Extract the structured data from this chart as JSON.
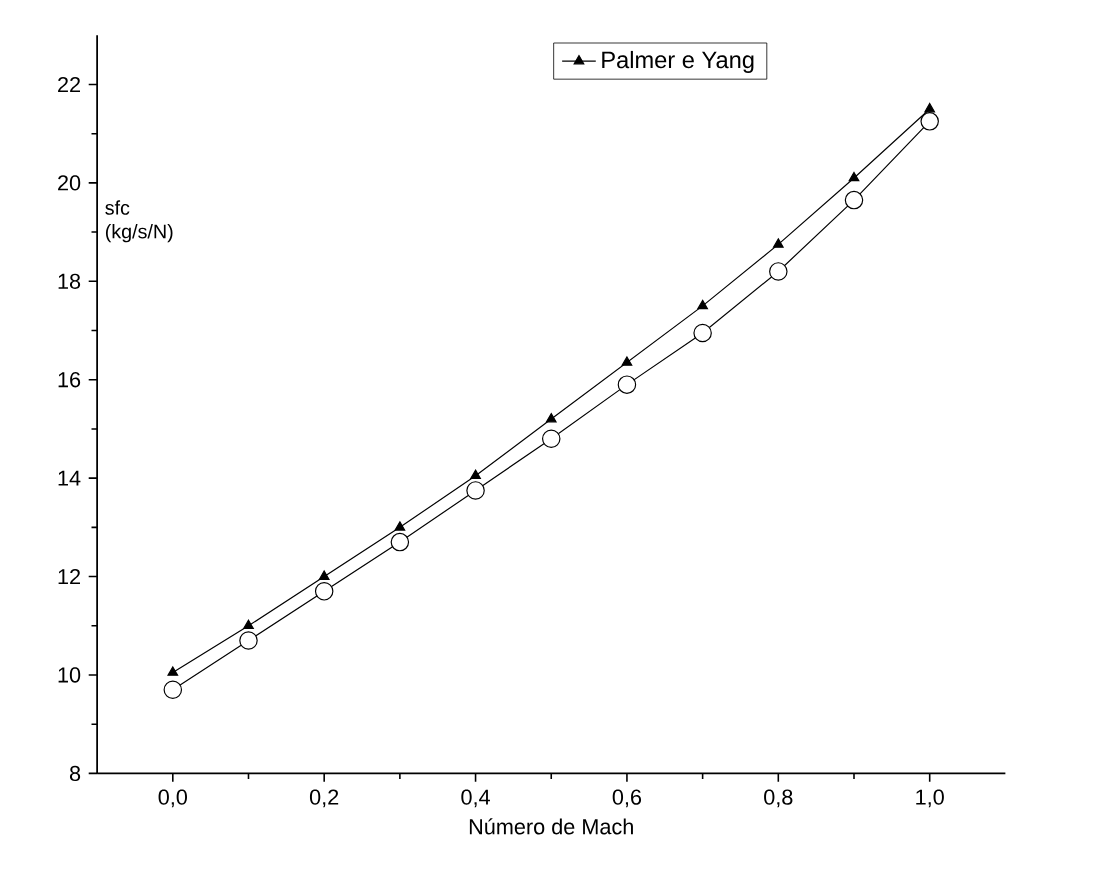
{
  "chart_data": {
    "type": "line",
    "xlabel": "Número de Mach",
    "ylabel": "sfc (kg/s/N)",
    "x": [
      0.0,
      0.1,
      0.2,
      0.3,
      0.4,
      0.5,
      0.6,
      0.7,
      0.8,
      0.9,
      1.0
    ],
    "series": [
      {
        "color": "#000000",
        "marker": "circle",
        "values": [
          9.7,
          10.7,
          11.7,
          12.7,
          13.75,
          14.8,
          15.9,
          16.95,
          18.2,
          19.65,
          21.25
        ]
      },
      {
        "name": "Palmer e Yang",
        "color": "#000000",
        "marker": "triangle",
        "values": [
          10.05,
          11.0,
          12.0,
          13.0,
          14.05,
          15.2,
          16.35,
          17.5,
          18.75,
          20.1,
          21.5
        ]
      }
    ],
    "xlim": [
      -0.1,
      1.1
    ],
    "ylim": [
      8,
      23
    ],
    "xticks": [
      {
        "value": 0.0,
        "label": "0,0"
      },
      {
        "value": 0.2,
        "label": "0,2"
      },
      {
        "value": 0.4,
        "label": "0,4"
      },
      {
        "value": 0.6,
        "label": "0,6"
      },
      {
        "value": 0.8,
        "label": "0,8"
      },
      {
        "value": 1.0,
        "label": "1,0"
      }
    ],
    "yticks": [
      8,
      10,
      12,
      14,
      16,
      18,
      20,
      22
    ],
    "legend": "top",
    "grid": false,
    "line_style": "solid"
  }
}
